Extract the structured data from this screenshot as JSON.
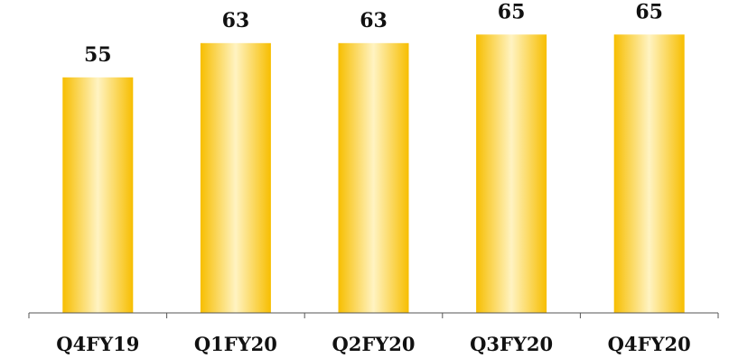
{
  "chart_data": {
    "type": "bar",
    "categories": [
      "Q4FY19",
      "Q1FY20",
      "Q2FY20",
      "Q3FY20",
      "Q4FY20"
    ],
    "values": [
      55,
      63,
      63,
      65,
      65
    ],
    "title": "",
    "xlabel": "",
    "ylabel": "",
    "ylim": [
      0,
      70
    ],
    "grid": false,
    "legend": "none",
    "show_data_labels": true,
    "colors": {
      "bar_edge": "#f7be00",
      "bar_center": "#fff3c2",
      "axis": "#555555",
      "text": "#111111"
    }
  }
}
